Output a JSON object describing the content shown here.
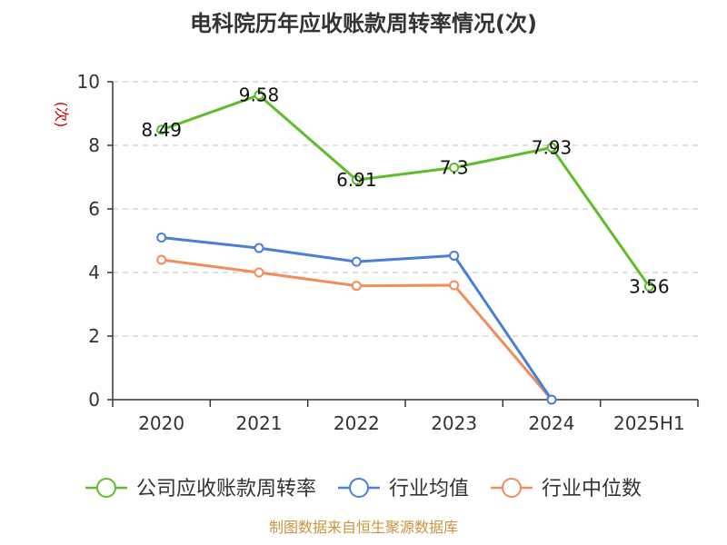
{
  "chart_data": {
    "type": "line",
    "title": "电科院历年应收账款周转率情况(次)",
    "ylabel": "(次)",
    "xlabel": "",
    "categories": [
      "2020",
      "2021",
      "2022",
      "2023",
      "2024",
      "2025H1"
    ],
    "ylim": [
      0,
      10
    ],
    "yticks": [
      0,
      2,
      4,
      6,
      8,
      10
    ],
    "grid": true,
    "legend_position": "bottom",
    "series": [
      {
        "name": "公司应收账款周转率",
        "color": "#5dbd2a",
        "values": [
          8.49,
          9.58,
          6.91,
          7.3,
          7.93,
          3.56
        ],
        "labels": [
          "8.49",
          "9.58",
          "6.91",
          "7.3",
          "7.93",
          "3.56"
        ]
      },
      {
        "name": "行业均值",
        "color": "#4a7fd8",
        "values": [
          5.1,
          4.77,
          4.34,
          4.53,
          0,
          null
        ]
      },
      {
        "name": "行业中位数",
        "color": "#f28c5a",
        "values": [
          4.4,
          4.0,
          3.58,
          3.6,
          0,
          null
        ]
      }
    ]
  },
  "source_text": "制图数据来自恒生聚源数据库",
  "colors": {
    "title": "#333333",
    "ylabel": "#cc0000",
    "source": "#c8953c",
    "grid": "#cccccc",
    "axis": "#333333"
  }
}
